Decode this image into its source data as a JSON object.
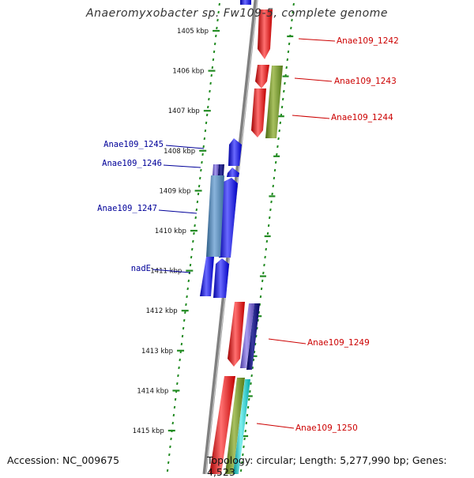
{
  "title": "Anaeromyxobacter sp. Fw109-5, complete genome",
  "footer": {
    "accession": "Accession: NC_009675",
    "summary": "Topology: circular; Length: 5,277,990 bp; Genes: 4,523"
  },
  "scale_labels": [
    "1405 kbp",
    "1406 kbp",
    "1407 kbp",
    "1408 kbp",
    "1409 kbp",
    "1410 kbp",
    "1411 kbp",
    "1412 kbp",
    "1413 kbp",
    "1414 kbp",
    "1415 kbp"
  ],
  "gene_labels_forward": [
    "Anae109_1242",
    "Anae109_1243",
    "Anae109_1244",
    "Anae109_1249",
    "Anae109_1250"
  ],
  "gene_labels_reverse": [
    "Anae109_1245",
    "Anae109_1246",
    "Anae109_1247",
    "nadE"
  ],
  "colors": {
    "forward_strand": "#ff0000",
    "reverse_strand": "#0000ff",
    "olive": "#6b8e23",
    "steelblue": "#4682b4",
    "slateblue": "#6a5acd",
    "navy": "#000080",
    "cyan": "#00ced1",
    "backbone": "#808080",
    "ticks": "#228b22"
  }
}
